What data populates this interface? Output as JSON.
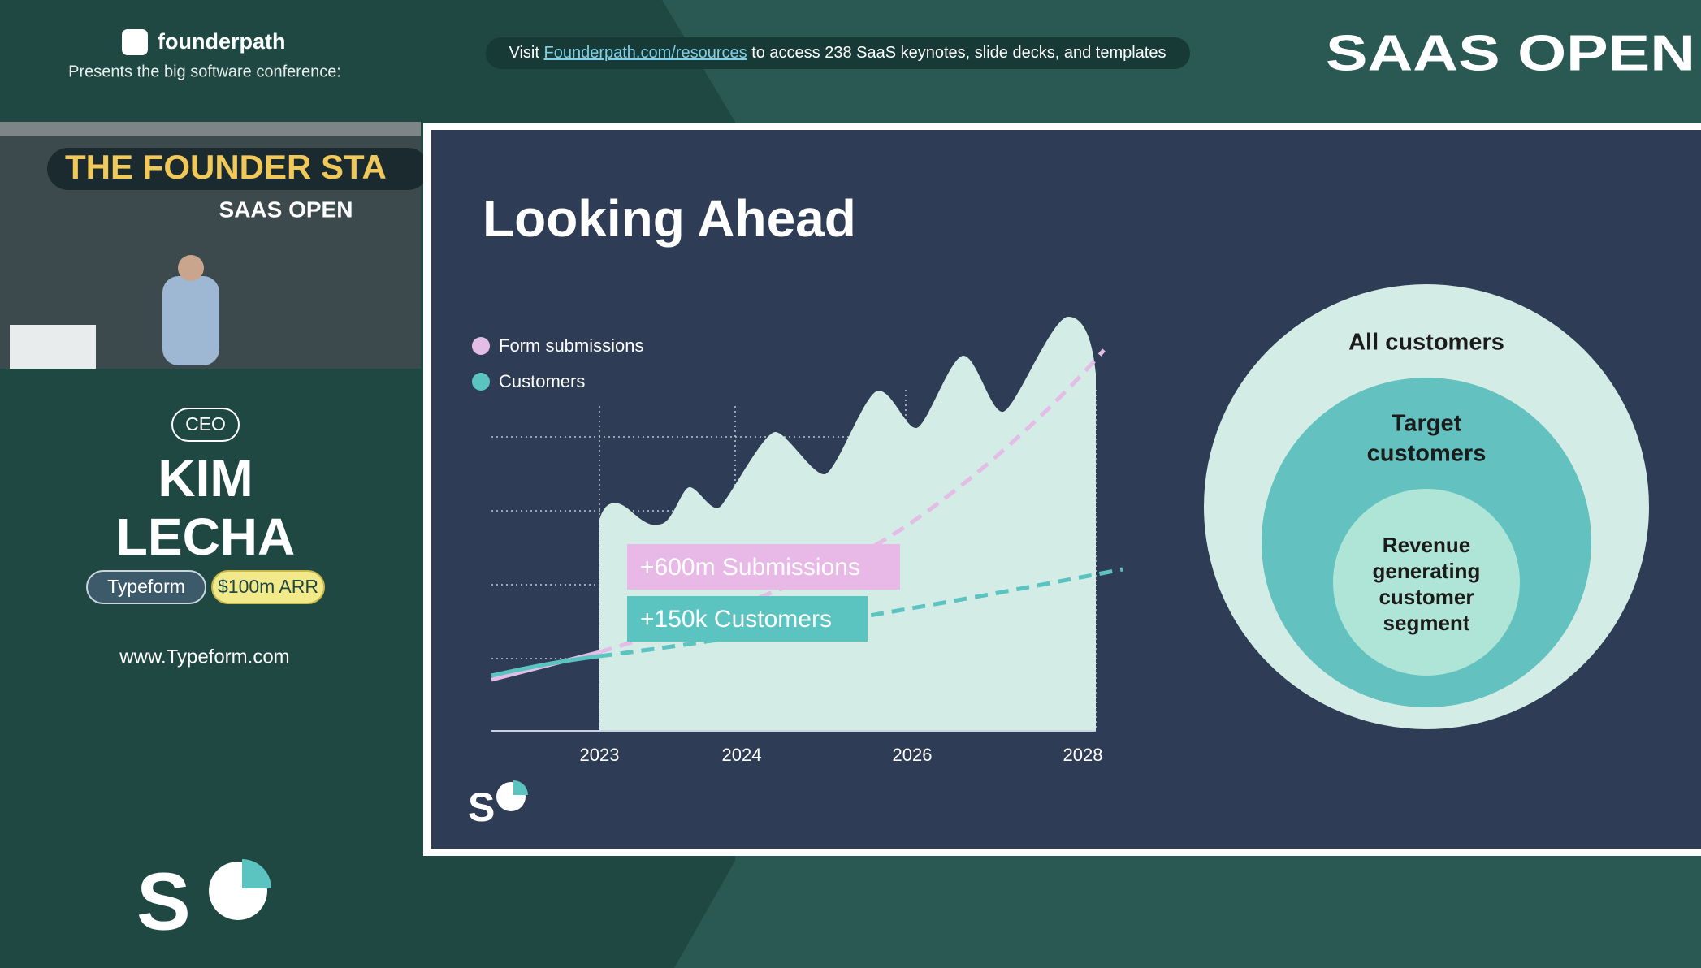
{
  "header": {
    "brand": "founderpath",
    "tagline": "Presents the big software conference:",
    "banner": {
      "prefix": "Visit",
      "link": "Founderpath.com/resources",
      "suffix": "to access 238 SaaS keynotes, slide decks, and templates"
    },
    "event_logo": "SAAS OPEN"
  },
  "video": {
    "stage_banner": "THE FOUNDER STA",
    "stage_logo": "SAAS OPEN"
  },
  "speaker": {
    "role": "CEO",
    "name_lines": [
      "KIM",
      "LECHA"
    ],
    "company": "Typeform",
    "arr": "$100m ARR",
    "website": "www.Typeform.com"
  },
  "slide": {
    "title": "Looking Ahead",
    "legend": [
      "Form submissions",
      "Customers"
    ],
    "x_labels": [
      "2023",
      "2024",
      "2026",
      "2028"
    ],
    "callouts": [
      "+600m Submissions",
      "+150k Customers"
    ],
    "circles": {
      "outer": "All customers",
      "middle": [
        "Target",
        "customers"
      ],
      "inner": [
        "Revenue",
        "generating",
        "customer",
        "segment"
      ]
    }
  }
}
